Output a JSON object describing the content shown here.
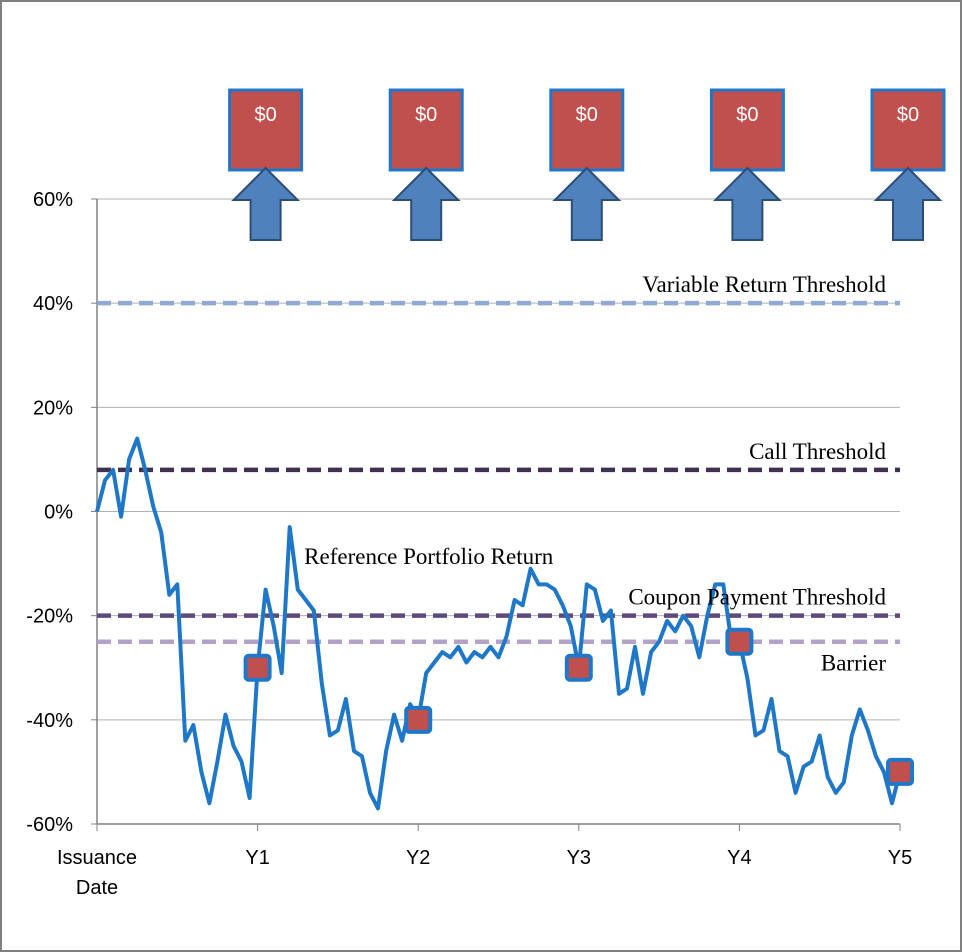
{
  "chart_data": {
    "type": "line",
    "title": "",
    "xlabel": "",
    "ylabel": "",
    "ylim": [
      -0.6,
      0.6
    ],
    "xlim": [
      0,
      5
    ],
    "y_ticks": [
      {
        "value": 0.6,
        "label": "60%"
      },
      {
        "value": 0.4,
        "label": "40%"
      },
      {
        "value": 0.2,
        "label": "20%"
      },
      {
        "value": 0.0,
        "label": "0%"
      },
      {
        "value": -0.2,
        "label": "-20%"
      },
      {
        "value": -0.4,
        "label": "-40%"
      },
      {
        "value": -0.6,
        "label": "-60%"
      }
    ],
    "x_ticks": [
      {
        "value": 0,
        "lines": [
          "Issuance",
          "Date"
        ]
      },
      {
        "value": 1,
        "lines": [
          "Y1"
        ]
      },
      {
        "value": 2,
        "lines": [
          "Y2"
        ]
      },
      {
        "value": 3,
        "lines": [
          "Y3"
        ]
      },
      {
        "value": 4,
        "lines": [
          "Y4"
        ]
      },
      {
        "value": 5,
        "lines": [
          "Y5"
        ]
      }
    ],
    "grid": true,
    "series": [
      {
        "name": "Reference Portfolio Return",
        "color": "#1f77c8",
        "x": [
          0.0,
          0.05,
          0.1,
          0.15,
          0.2,
          0.25,
          0.3,
          0.35,
          0.4,
          0.45,
          0.5,
          0.55,
          0.6,
          0.65,
          0.7,
          0.75,
          0.8,
          0.85,
          0.9,
          0.95,
          1.0,
          1.05,
          1.1,
          1.15,
          1.2,
          1.25,
          1.3,
          1.35,
          1.4,
          1.45,
          1.5,
          1.55,
          1.6,
          1.65,
          1.7,
          1.75,
          1.8,
          1.85,
          1.9,
          1.95,
          2.0,
          2.05,
          2.1,
          2.15,
          2.2,
          2.25,
          2.3,
          2.35,
          2.4,
          2.45,
          2.5,
          2.55,
          2.6,
          2.65,
          2.7,
          2.75,
          2.8,
          2.85,
          2.9,
          2.95,
          3.0,
          3.05,
          3.1,
          3.15,
          3.2,
          3.25,
          3.3,
          3.35,
          3.4,
          3.45,
          3.5,
          3.55,
          3.6,
          3.65,
          3.7,
          3.75,
          3.8,
          3.85,
          3.9,
          3.95,
          4.0,
          4.05,
          4.1,
          4.15,
          4.2,
          4.25,
          4.3,
          4.35,
          4.4,
          4.45,
          4.5,
          4.55,
          4.6,
          4.65,
          4.7,
          4.75,
          4.8,
          4.85,
          4.9,
          4.95,
          5.0
        ],
        "y": [
          0.0,
          0.06,
          0.08,
          -0.01,
          0.1,
          0.14,
          0.08,
          0.01,
          -0.04,
          -0.16,
          -0.14,
          -0.44,
          -0.41,
          -0.5,
          -0.56,
          -0.48,
          -0.39,
          -0.45,
          -0.48,
          -0.55,
          -0.3,
          -0.15,
          -0.22,
          -0.31,
          -0.03,
          -0.15,
          -0.17,
          -0.19,
          -0.33,
          -0.43,
          -0.42,
          -0.36,
          -0.46,
          -0.47,
          -0.54,
          -0.57,
          -0.46,
          -0.39,
          -0.44,
          -0.37,
          -0.4,
          -0.31,
          -0.29,
          -0.27,
          -0.28,
          -0.26,
          -0.29,
          -0.27,
          -0.28,
          -0.26,
          -0.28,
          -0.24,
          -0.17,
          -0.18,
          -0.11,
          -0.14,
          -0.14,
          -0.15,
          -0.18,
          -0.22,
          -0.3,
          -0.14,
          -0.15,
          -0.21,
          -0.19,
          -0.35,
          -0.34,
          -0.26,
          -0.35,
          -0.27,
          -0.25,
          -0.21,
          -0.23,
          -0.2,
          -0.22,
          -0.28,
          -0.2,
          -0.14,
          -0.14,
          -0.25,
          -0.25,
          -0.32,
          -0.43,
          -0.42,
          -0.36,
          -0.46,
          -0.47,
          -0.54,
          -0.49,
          -0.48,
          -0.43,
          -0.51,
          -0.54,
          -0.52,
          -0.43,
          -0.38,
          -0.42,
          -0.47,
          -0.5,
          -0.56,
          -0.5
        ]
      }
    ],
    "observation_points": [
      {
        "x": 1,
        "y": -0.3
      },
      {
        "x": 2,
        "y": -0.4
      },
      {
        "x": 3,
        "y": -0.3
      },
      {
        "x": 4,
        "y": -0.25
      },
      {
        "x": 5,
        "y": -0.5
      }
    ],
    "thresholds": [
      {
        "name": "Variable Return Threshold",
        "value": 0.4,
        "color": "#8fa9d4",
        "label": "Variable Return Threshold"
      },
      {
        "name": "Call Threshold",
        "value": 0.08,
        "color": "#403152",
        "label": "Call Threshold"
      },
      {
        "name": "Coupon Payment Threshold",
        "value": -0.2,
        "color": "#5f4a7d",
        "label": "Coupon Payment Threshold"
      },
      {
        "name": "Barrier",
        "value": -0.25,
        "color": "#b3a2c7",
        "label": "Barrier"
      }
    ],
    "payments": [
      {
        "x": 1,
        "label": "$0"
      },
      {
        "x": 2,
        "label": "$0"
      },
      {
        "x": 3,
        "label": "$0"
      },
      {
        "x": 4,
        "label": "$0"
      },
      {
        "x": 5,
        "label": "$0"
      }
    ],
    "annotations": [
      {
        "text": "Reference Portfolio Return",
        "x": 1.29,
        "y": -0.085
      }
    ],
    "colors": {
      "payment_box": "#c0504d",
      "payment_box_border": "#1f77c8",
      "arrow_fill": "#4f81bd",
      "arrow_border": "#2c4d75",
      "marker_fill": "#c0504d",
      "marker_border": "#1f77c8",
      "grid": "#b0b0b0",
      "axis": "#808080"
    }
  }
}
